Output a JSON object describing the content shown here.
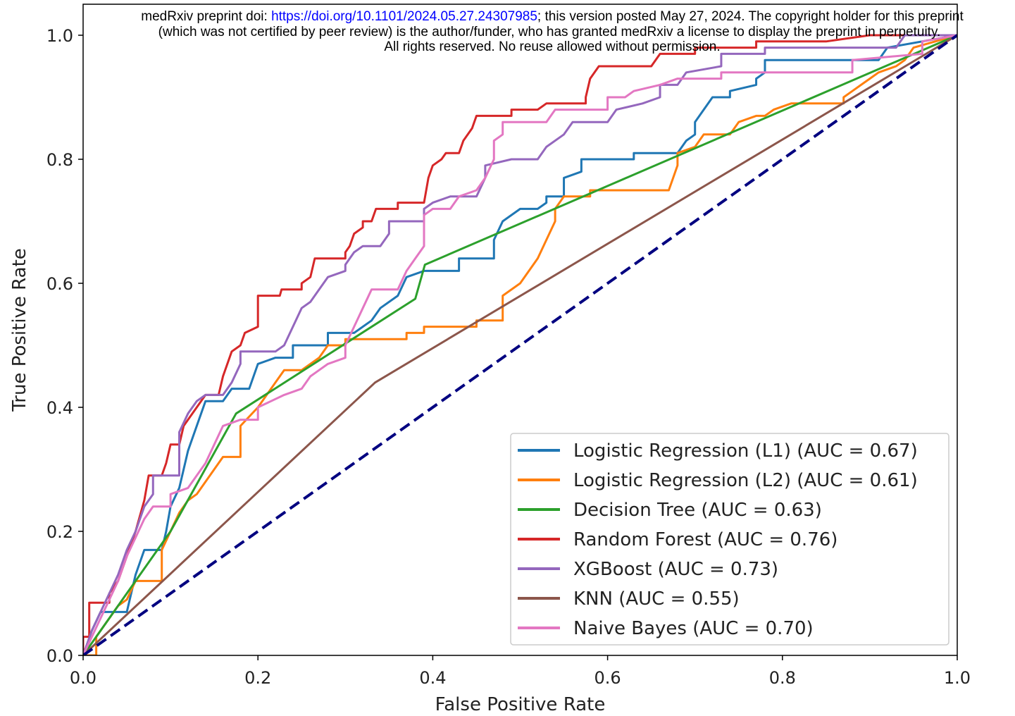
{
  "watermark": {
    "prefix": "medRxiv preprint doi: ",
    "link": "https://doi.org/10.1101/2024.05.27.24307985",
    "suffix": "; this version posted May 27, 2024. The copyright holder for this preprint",
    "line2": "(which was not certified by peer review) is the author/funder, who has granted medRxiv a license to display the preprint in perpetuity.",
    "line3": "All rights reserved. No reuse allowed without permission."
  },
  "chart_data": {
    "type": "line",
    "x_label": "False Positive Rate",
    "y_label": "True Positive Rate",
    "xlim": [
      0,
      1
    ],
    "ylim": [
      0,
      1.05
    ],
    "xticks": [
      {
        "value": 0,
        "label": "0.0"
      },
      0.2,
      0.4,
      0.6,
      0.8,
      {
        "value": 1,
        "label": "1.0"
      }
    ],
    "yticks": [
      {
        "value": 0,
        "label": "0.0"
      },
      0.2,
      0.4,
      0.6,
      0.8,
      {
        "value": 1,
        "label": "1.0"
      }
    ],
    "grid": false,
    "legend": "lower right",
    "series": [
      {
        "name": "Logistic Regression (L1) (AUC = 0.67)",
        "color": "#1f77b4",
        "x": [
          0,
          0.01,
          0.02,
          0.05,
          0.06,
          0.07,
          0.09,
          0.095,
          0.1,
          0.11,
          0.115,
          0.12,
          0.13,
          0.14,
          0.16,
          0.17,
          0.19,
          0.2,
          0.22,
          0.24,
          0.24,
          0.28,
          0.28,
          0.31,
          0.33,
          0.34,
          0.36,
          0.37,
          0.39,
          0.43,
          0.43,
          0.47,
          0.47,
          0.48,
          0.5,
          0.52,
          0.53,
          0.53,
          0.55,
          0.55,
          0.57,
          0.57,
          0.63,
          0.63,
          0.68,
          0.69,
          0.7,
          0.7,
          0.71,
          0.72,
          0.74,
          0.74,
          0.77,
          0.77,
          0.78,
          0.78,
          0.91,
          0.92,
          1
        ],
        "values": [
          0,
          0.04,
          0.07,
          0.07,
          0.13,
          0.17,
          0.17,
          0.2,
          0.24,
          0.27,
          0.3,
          0.33,
          0.37,
          0.41,
          0.41,
          0.43,
          0.43,
          0.47,
          0.48,
          0.48,
          0.5,
          0.5,
          0.52,
          0.52,
          0.54,
          0.56,
          0.58,
          0.61,
          0.62,
          0.62,
          0.64,
          0.64,
          0.67,
          0.7,
          0.72,
          0.72,
          0.73,
          0.74,
          0.74,
          0.77,
          0.78,
          0.8,
          0.8,
          0.81,
          0.81,
          0.83,
          0.84,
          0.86,
          0.88,
          0.9,
          0.9,
          0.91,
          0.92,
          0.93,
          0.94,
          0.96,
          0.96,
          0.98,
          1
        ]
      },
      {
        "name": "Logistic Regression (L2) (AUC = 0.61)",
        "color": "#ff7f0e",
        "x": [
          0,
          0.015,
          0.015,
          0.03,
          0.04,
          0.05,
          0.06,
          0.09,
          0.09,
          0.1,
          0.11,
          0.12,
          0.13,
          0.14,
          0.15,
          0.16,
          0.18,
          0.18,
          0.2,
          0.21,
          0.22,
          0.23,
          0.25,
          0.27,
          0.28,
          0.3,
          0.3,
          0.37,
          0.37,
          0.39,
          0.39,
          0.45,
          0.45,
          0.48,
          0.48,
          0.5,
          0.51,
          0.52,
          0.53,
          0.54,
          0.54,
          0.55,
          0.58,
          0.58,
          0.67,
          0.68,
          0.68,
          0.7,
          0.71,
          0.74,
          0.75,
          0.77,
          0.78,
          0.79,
          0.81,
          0.87,
          0.87,
          0.88,
          0.89,
          0.9,
          0.91,
          0.93,
          0.94,
          0.95,
          1
        ],
        "values": [
          0,
          0,
          0.03,
          0.06,
          0.08,
          0.09,
          0.12,
          0.12,
          0.17,
          0.2,
          0.23,
          0.25,
          0.26,
          0.28,
          0.3,
          0.32,
          0.32,
          0.37,
          0.4,
          0.42,
          0.44,
          0.46,
          0.46,
          0.48,
          0.5,
          0.5,
          0.51,
          0.51,
          0.52,
          0.52,
          0.53,
          0.53,
          0.54,
          0.54,
          0.58,
          0.6,
          0.62,
          0.64,
          0.67,
          0.7,
          0.72,
          0.74,
          0.74,
          0.75,
          0.75,
          0.79,
          0.81,
          0.82,
          0.84,
          0.84,
          0.86,
          0.87,
          0.87,
          0.88,
          0.89,
          0.89,
          0.9,
          0.91,
          0.92,
          0.93,
          0.94,
          0.95,
          0.96,
          0.98,
          1
        ]
      },
      {
        "name": "Decision Tree (AUC = 0.63)",
        "color": "#2ca02c",
        "x": [
          0,
          0.1,
          0.175,
          0.38,
          0.391,
          1
        ],
        "values": [
          0,
          0.2,
          0.39,
          0.575,
          0.63,
          1
        ]
      },
      {
        "name": "Random Forest (AUC = 0.76)",
        "color": "#d62728",
        "x": [
          0,
          0,
          0.007,
          0.007,
          0.03,
          0.03,
          0.04,
          0.05,
          0.06,
          0.07,
          0.075,
          0.09,
          0.095,
          0.1,
          0.11,
          0.115,
          0.13,
          0.14,
          0.155,
          0.16,
          0.17,
          0.18,
          0.185,
          0.2,
          0.2,
          0.225,
          0.227,
          0.25,
          0.25,
          0.26,
          0.265,
          0.3,
          0.3,
          0.305,
          0.31,
          0.32,
          0.32,
          0.33,
          0.335,
          0.36,
          0.36,
          0.39,
          0.395,
          0.4,
          0.41,
          0.415,
          0.43,
          0.435,
          0.445,
          0.45,
          0.49,
          0.49,
          0.52,
          0.53,
          0.575,
          0.575,
          0.58,
          0.59,
          0.65,
          0.66,
          0.7,
          0.7,
          0.77,
          0.77,
          0.85,
          0.9,
          1
        ],
        "values": [
          0,
          0.03,
          0.03,
          0.085,
          0.085,
          0.1,
          0.12,
          0.16,
          0.2,
          0.25,
          0.29,
          0.29,
          0.31,
          0.34,
          0.34,
          0.37,
          0.4,
          0.42,
          0.42,
          0.45,
          0.49,
          0.5,
          0.52,
          0.53,
          0.58,
          0.58,
          0.59,
          0.59,
          0.6,
          0.61,
          0.64,
          0.64,
          0.65,
          0.66,
          0.68,
          0.69,
          0.7,
          0.7,
          0.72,
          0.72,
          0.73,
          0.73,
          0.77,
          0.79,
          0.8,
          0.81,
          0.81,
          0.83,
          0.85,
          0.87,
          0.87,
          0.88,
          0.88,
          0.89,
          0.89,
          0.9,
          0.93,
          0.95,
          0.95,
          0.97,
          0.97,
          0.98,
          0.98,
          0.99,
          0.99,
          1,
          1
        ]
      },
      {
        "name": "XGBoost (AUC = 0.73)",
        "color": "#9467bd",
        "x": [
          0,
          0.01,
          0.02,
          0.03,
          0.04,
          0.05,
          0.06,
          0.07,
          0.08,
          0.08,
          0.11,
          0.11,
          0.12,
          0.13,
          0.14,
          0.16,
          0.17,
          0.18,
          0.18,
          0.22,
          0.23,
          0.24,
          0.25,
          0.26,
          0.27,
          0.28,
          0.3,
          0.3,
          0.31,
          0.32,
          0.34,
          0.35,
          0.35,
          0.39,
          0.39,
          0.4,
          0.42,
          0.45,
          0.46,
          0.46,
          0.49,
          0.52,
          0.53,
          0.55,
          0.56,
          0.6,
          0.61,
          0.64,
          0.66,
          0.66,
          0.68,
          0.69,
          0.73,
          0.73,
          0.78,
          0.78,
          0.93,
          0.94,
          1
        ],
        "values": [
          0,
          0.04,
          0.07,
          0.1,
          0.13,
          0.17,
          0.2,
          0.24,
          0.26,
          0.29,
          0.29,
          0.36,
          0.39,
          0.41,
          0.42,
          0.42,
          0.44,
          0.47,
          0.49,
          0.49,
          0.5,
          0.53,
          0.56,
          0.57,
          0.59,
          0.61,
          0.62,
          0.63,
          0.65,
          0.66,
          0.66,
          0.68,
          0.7,
          0.7,
          0.72,
          0.73,
          0.74,
          0.74,
          0.77,
          0.79,
          0.8,
          0.8,
          0.82,
          0.84,
          0.86,
          0.86,
          0.88,
          0.89,
          0.9,
          0.92,
          0.92,
          0.94,
          0.95,
          0.97,
          0.97,
          0.98,
          0.98,
          1,
          1
        ]
      },
      {
        "name": "KNN (AUC = 0.55)",
        "color": "#8c564b",
        "x": [
          0,
          0.334,
          1
        ],
        "values": [
          0,
          0.44,
          1
        ]
      },
      {
        "name": "Naive Bayes (AUC = 0.70)",
        "color": "#e377c2",
        "x": [
          0,
          0.01,
          0.02,
          0.03,
          0.04,
          0.05,
          0.06,
          0.07,
          0.08,
          0.1,
          0.1,
          0.12,
          0.13,
          0.14,
          0.15,
          0.16,
          0.18,
          0.2,
          0.2,
          0.23,
          0.25,
          0.26,
          0.27,
          0.28,
          0.3,
          0.3,
          0.31,
          0.32,
          0.33,
          0.36,
          0.37,
          0.38,
          0.39,
          0.39,
          0.4,
          0.42,
          0.43,
          0.45,
          0.46,
          0.47,
          0.47,
          0.48,
          0.48,
          0.53,
          0.54,
          0.6,
          0.6,
          0.62,
          0.63,
          0.66,
          0.68,
          0.73,
          0.73,
          0.88,
          0.88,
          0.96,
          0.96,
          1
        ],
        "values": [
          0,
          0.03,
          0.06,
          0.09,
          0.12,
          0.16,
          0.19,
          0.22,
          0.24,
          0.24,
          0.26,
          0.27,
          0.29,
          0.31,
          0.34,
          0.37,
          0.38,
          0.38,
          0.4,
          0.42,
          0.43,
          0.45,
          0.46,
          0.47,
          0.48,
          0.5,
          0.53,
          0.56,
          0.59,
          0.59,
          0.62,
          0.64,
          0.66,
          0.71,
          0.72,
          0.72,
          0.74,
          0.75,
          0.77,
          0.8,
          0.83,
          0.84,
          0.86,
          0.86,
          0.88,
          0.88,
          0.9,
          0.9,
          0.91,
          0.92,
          0.93,
          0.93,
          0.94,
          0.94,
          0.96,
          0.97,
          0.99,
          1
        ]
      }
    ],
    "reference_line": {
      "x": [
        0,
        1
      ],
      "values": [
        0,
        1
      ],
      "color": "#000080",
      "dashed": true
    }
  }
}
